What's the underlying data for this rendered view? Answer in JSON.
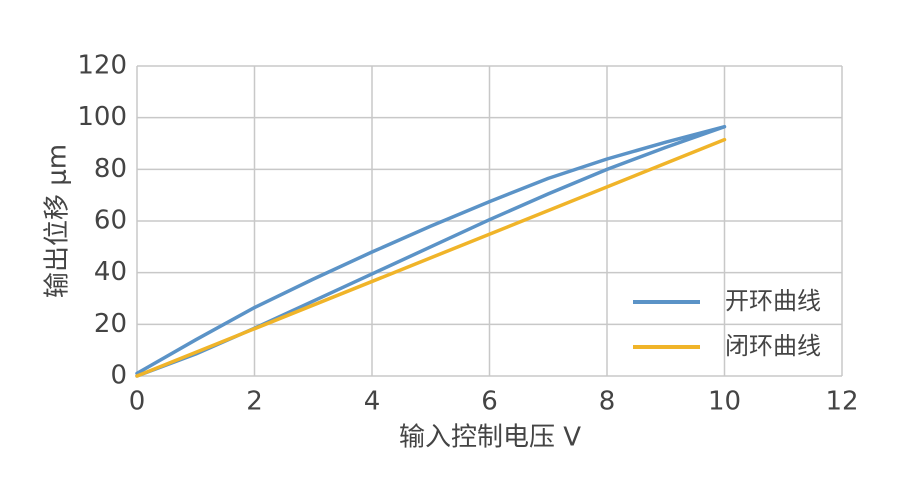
{
  "chart_data": {
    "type": "line",
    "x_label": "输入控制电压 V",
    "y_label": "输出位移 μm",
    "xlim": [
      0,
      12
    ],
    "xticks": [
      0,
      2,
      4,
      6,
      8,
      10,
      12
    ],
    "ylim": [
      0,
      120
    ],
    "yticks": [
      0,
      20,
      40,
      60,
      80,
      100,
      120
    ],
    "grid": true,
    "legend": "lower right",
    "series": [
      {
        "name": "开环曲线",
        "color": "#5b93c7",
        "x": [
          0,
          1,
          2,
          3,
          4,
          5,
          6,
          7,
          8,
          9,
          10,
          9,
          8,
          7,
          6,
          5,
          4,
          3,
          2,
          1,
          0
        ],
        "values": [
          0,
          8.5,
          18.5,
          29,
          39.5,
          50,
          60.5,
          70.5,
          80,
          88.5,
          96.5,
          90.5,
          84,
          76.5,
          67.5,
          58,
          48,
          37.5,
          26.5,
          14,
          1
        ]
      },
      {
        "name": "闭环曲线",
        "color": "#f0b429",
        "x": [
          0,
          10
        ],
        "values": [
          0,
          91.5
        ]
      }
    ]
  }
}
